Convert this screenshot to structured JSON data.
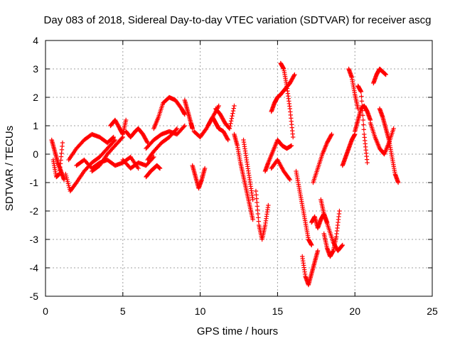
{
  "chart_data": {
    "type": "scatter",
    "title": "Day 083 of 2018, Sidereal Day-to-day VTEC variation (SDTVAR) for receiver ascg",
    "xlabel": "GPS time / hours",
    "ylabel": "SDTVAR / TECUs",
    "xlim": [
      0,
      25
    ],
    "ylim": [
      -5,
      4
    ],
    "xticks": [
      0,
      5,
      10,
      15,
      20,
      25
    ],
    "yticks": [
      -5,
      -4,
      -3,
      -2,
      -1,
      0,
      1,
      2,
      3,
      4
    ],
    "grid": true,
    "marker": "+",
    "series_color": "#ff0000",
    "trace_approximation": [
      {
        "name": "trace-a",
        "x": [
          0.4,
          0.6,
          0.8,
          1.0,
          1.2
        ],
        "y": [
          0.5,
          0.1,
          -0.3,
          -0.6,
          -0.9
        ]
      },
      {
        "name": "trace-b",
        "x": [
          0.5,
          0.7,
          0.9,
          1.1
        ],
        "y": [
          -0.2,
          -0.8,
          -0.7,
          0.4
        ]
      },
      {
        "name": "trace-c",
        "x": [
          1.3,
          1.6,
          2.0,
          2.5,
          3.0,
          3.5,
          4.0,
          4.5
        ],
        "y": [
          -0.7,
          -1.3,
          -1.0,
          -0.6,
          -0.3,
          -0.1,
          0.2,
          0.5
        ]
      },
      {
        "name": "trace-d",
        "x": [
          1.5,
          2.0,
          2.5,
          3.0,
          3.5,
          4.0,
          4.4
        ],
        "y": [
          -0.2,
          0.2,
          0.5,
          0.7,
          0.6,
          0.4,
          0.6
        ]
      },
      {
        "name": "trace-e",
        "x": [
          2.0,
          2.5,
          3.0,
          3.5,
          4.0,
          4.5,
          5.0,
          5.5,
          6.0
        ],
        "y": [
          -0.4,
          -0.2,
          -0.5,
          -0.3,
          -0.2,
          -0.4,
          -0.3,
          -0.1,
          -0.5
        ]
      },
      {
        "name": "trace-f",
        "x": [
          3.0,
          3.5,
          4.0,
          4.5,
          5.0
        ],
        "y": [
          -0.6,
          -0.4,
          0.0,
          0.3,
          0.6
        ]
      },
      {
        "name": "trace-g",
        "x": [
          4.2,
          4.5,
          4.8,
          5.0,
          5.2
        ],
        "y": [
          1.0,
          1.2,
          0.9,
          0.7,
          1.2
        ]
      },
      {
        "name": "trace-h",
        "x": [
          5.2,
          5.5,
          5.8,
          6.0,
          6.3,
          6.6
        ],
        "y": [
          0.8,
          0.6,
          0.8,
          0.9,
          0.7,
          0.4
        ]
      },
      {
        "name": "trace-i",
        "x": [
          5.0,
          5.5,
          6.0,
          6.5,
          7.0
        ],
        "y": [
          -0.2,
          -0.5,
          -0.3,
          -0.4,
          -0.1
        ]
      },
      {
        "name": "trace-j",
        "x": [
          6.5,
          6.8,
          7.0,
          7.2,
          7.4
        ],
        "y": [
          -0.8,
          -0.6,
          -0.5,
          -0.4,
          -0.5
        ]
      },
      {
        "name": "trace-k",
        "x": [
          6.5,
          7.0,
          7.5,
          8.0,
          8.5,
          9.0
        ],
        "y": [
          0.2,
          0.5,
          0.7,
          0.8,
          0.7,
          1.0
        ]
      },
      {
        "name": "trace-l",
        "x": [
          7.0,
          7.3,
          7.6,
          8.0,
          8.4,
          8.8,
          9.0
        ],
        "y": [
          0.9,
          1.3,
          1.8,
          2.0,
          1.9,
          1.6,
          1.4
        ]
      },
      {
        "name": "trace-m",
        "x": [
          6.6,
          7.0,
          7.5,
          8.0,
          8.5
        ],
        "y": [
          -0.2,
          0.1,
          0.4,
          0.6,
          0.9
        ]
      },
      {
        "name": "trace-n",
        "x": [
          9.0,
          9.2,
          9.4,
          9.5
        ],
        "y": [
          1.9,
          1.5,
          1.1,
          0.9
        ]
      },
      {
        "name": "trace-o",
        "x": [
          9.5,
          9.7,
          9.9,
          10.1,
          10.3
        ],
        "y": [
          -0.4,
          -0.8,
          -1.2,
          -0.9,
          -0.5
        ]
      },
      {
        "name": "trace-p",
        "x": [
          9.6,
          10.0,
          10.4,
          10.8,
          11.2
        ],
        "y": [
          0.8,
          0.6,
          0.9,
          1.3,
          1.7
        ]
      },
      {
        "name": "trace-q",
        "x": [
          10.5,
          10.8,
          11.0,
          11.2,
          11.5,
          11.8
        ],
        "y": [
          1.0,
          1.3,
          1.1,
          0.9,
          0.8,
          0.5
        ]
      },
      {
        "name": "trace-r",
        "x": [
          11.0,
          11.3,
          11.6,
          11.9,
          12.2
        ],
        "y": [
          1.6,
          1.4,
          1.1,
          0.9,
          1.7
        ]
      },
      {
        "name": "trace-s",
        "x": [
          12.2,
          12.4,
          12.6,
          12.8,
          13.0,
          13.2,
          13.4
        ],
        "y": [
          0.7,
          0.3,
          -0.3,
          -0.8,
          -1.3,
          -1.8,
          -2.3
        ]
      },
      {
        "name": "trace-t",
        "x": [
          12.8,
          13.0,
          13.2,
          13.4
        ],
        "y": [
          0.5,
          -0.2,
          -0.9,
          -1.6
        ]
      },
      {
        "name": "trace-u",
        "x": [
          13.6,
          13.8,
          14.0,
          14.2,
          14.4
        ],
        "y": [
          -1.3,
          -2.5,
          -3.0,
          -2.5,
          -1.8
        ]
      },
      {
        "name": "trace-v",
        "x": [
          14.2,
          14.4,
          14.7,
          15.0,
          15.3,
          15.6,
          15.9
        ],
        "y": [
          -0.6,
          -0.3,
          0.1,
          0.5,
          0.3,
          0.2,
          0.3
        ]
      },
      {
        "name": "trace-w",
        "x": [
          14.6,
          14.8,
          15.0,
          15.2,
          15.5,
          15.8,
          16.1
        ],
        "y": [
          1.5,
          1.8,
          2.0,
          2.1,
          2.3,
          2.5,
          2.8
        ]
      },
      {
        "name": "trace-x",
        "x": [
          15.2,
          15.4,
          15.6,
          15.8,
          16.0
        ],
        "y": [
          3.2,
          3.0,
          2.4,
          1.6,
          0.6
        ]
      },
      {
        "name": "trace-y",
        "x": [
          14.6,
          15.0,
          15.4,
          15.8
        ],
        "y": [
          -0.5,
          -0.2,
          -0.6,
          -0.9
        ]
      },
      {
        "name": "trace-z",
        "x": [
          16.2,
          16.4,
          16.6,
          16.8,
          17.0,
          17.2
        ],
        "y": [
          -0.6,
          -1.2,
          -1.8,
          -2.4,
          -3.0,
          -3.2
        ]
      },
      {
        "name": "trace-aa",
        "x": [
          16.6,
          16.8,
          17.0,
          17.2,
          17.4,
          17.6
        ],
        "y": [
          -3.6,
          -4.3,
          -4.6,
          -4.2,
          -3.8,
          -3.4
        ]
      },
      {
        "name": "trace-ab",
        "x": [
          17.2,
          17.4,
          17.6,
          17.8,
          18.0,
          18.2
        ],
        "y": [
          -2.4,
          -2.2,
          -2.6,
          -2.3,
          -2.1,
          -2.4
        ]
      },
      {
        "name": "trace-ac",
        "x": [
          17.3,
          17.6,
          17.9,
          18.2,
          18.5
        ],
        "y": [
          -1.0,
          -0.5,
          0.0,
          0.4,
          0.7
        ]
      },
      {
        "name": "trace-ad",
        "x": [
          17.8,
          18.0,
          18.3,
          18.6,
          18.9,
          19.2
        ],
        "y": [
          -1.6,
          -2.1,
          -2.6,
          -3.1,
          -3.4,
          -3.2
        ]
      },
      {
        "name": "trace-ae",
        "x": [
          18.0,
          18.2,
          18.4,
          18.6,
          18.8,
          19.0
        ],
        "y": [
          -2.8,
          -3.3,
          -3.6,
          -3.4,
          -2.9,
          -2.0
        ]
      },
      {
        "name": "trace-af",
        "x": [
          19.2,
          19.4,
          19.6,
          19.8,
          20.0
        ],
        "y": [
          -0.4,
          -0.1,
          0.2,
          0.5,
          0.7
        ]
      },
      {
        "name": "trace-ag",
        "x": [
          19.6,
          19.8,
          20.0,
          20.2
        ],
        "y": [
          3.0,
          2.7,
          2.1,
          1.6
        ]
      },
      {
        "name": "trace-ah",
        "x": [
          20.0,
          20.2,
          20.4,
          20.6,
          20.8,
          21.0
        ],
        "y": [
          0.8,
          1.2,
          1.6,
          1.7,
          1.5,
          1.2
        ]
      },
      {
        "name": "trace-ai",
        "x": [
          20.2,
          20.4,
          20.6,
          20.8
        ],
        "y": [
          2.4,
          2.2,
          0.7,
          -0.3
        ]
      },
      {
        "name": "trace-aj",
        "x": [
          21.2,
          21.4,
          21.6,
          21.8,
          22.0
        ],
        "y": [
          2.5,
          2.8,
          3.0,
          2.9,
          2.8
        ]
      },
      {
        "name": "trace-ak",
        "x": [
          21.0,
          21.3,
          21.6,
          21.9,
          22.2,
          22.5
        ],
        "y": [
          1.1,
          0.6,
          0.2,
          0.0,
          0.4,
          0.9
        ]
      },
      {
        "name": "trace-al",
        "x": [
          21.6,
          21.8,
          22.0,
          22.2,
          22.4,
          22.6,
          22.8
        ],
        "y": [
          1.6,
          1.3,
          0.9,
          0.5,
          -0.1,
          -0.7,
          -1.0
        ]
      }
    ]
  }
}
